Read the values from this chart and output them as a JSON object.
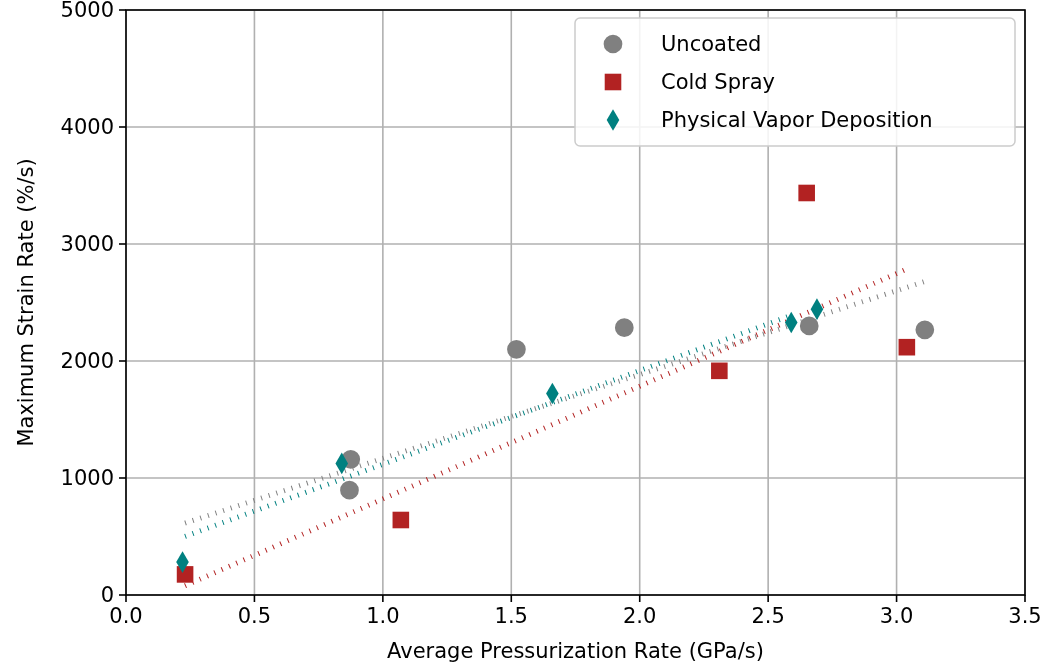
{
  "chart_data": {
    "type": "scatter",
    "xlabel": "Average Pressurization Rate (GPa/s)",
    "ylabel": "Maximum Strain Rate (%/s)",
    "xlim": [
      0,
      3.5
    ],
    "ylim": [
      0,
      5000
    ],
    "xticks": [
      {
        "value": 0,
        "label": "0.0"
      },
      {
        "value": 0.5,
        "label": "0.5"
      },
      {
        "value": 1,
        "label": "1.0"
      },
      {
        "value": 1.5,
        "label": "1.5"
      },
      {
        "value": 2,
        "label": "2.0"
      },
      {
        "value": 2.5,
        "label": "2.5"
      },
      {
        "value": 3,
        "label": "3.0"
      },
      {
        "value": 3.5,
        "label": "3.5"
      }
    ],
    "yticks": [
      0,
      1000,
      2000,
      3000,
      4000,
      5000
    ],
    "grid": true,
    "legend": "top right",
    "series": [
      {
        "type": "line",
        "color": "#808080",
        "line_style": "dotted",
        "marker": "none",
        "x": [
          0.23,
          3.11
        ],
        "values": [
          615,
          2680
        ]
      },
      {
        "type": "line",
        "color": "#b22222",
        "line_style": "dotted",
        "marker": "none",
        "x": [
          0.23,
          3.04
        ],
        "values": [
          79,
          2786
        ]
      },
      {
        "type": "line",
        "color": "#008080",
        "line_style": "dotted",
        "marker": "none",
        "x": [
          0.23,
          2.59
        ],
        "values": [
          501,
          2390
        ]
      },
      {
        "name": "Uncoated",
        "color": "#808080",
        "marker": "circle",
        "x": [
          0.87,
          0.875,
          1.52,
          1.94,
          2.66,
          3.11
        ],
        "values": [
          896,
          1160,
          2100,
          2285,
          2300,
          2267
        ]
      },
      {
        "name": "Cold Spray",
        "color": "#b22222",
        "marker": "square",
        "x": [
          0.23,
          1.07,
          2.31,
          2.65,
          3.04
        ],
        "values": [
          176,
          641,
          1916,
          3436,
          2118
        ]
      },
      {
        "name": "Physical Vapor Deposition",
        "color": "#008080",
        "marker": "diamond",
        "x": [
          0.22,
          0.84,
          1.66,
          2.59,
          2.69
        ],
        "values": [
          281,
          1125,
          1722,
          2329,
          2443
        ]
      }
    ]
  }
}
